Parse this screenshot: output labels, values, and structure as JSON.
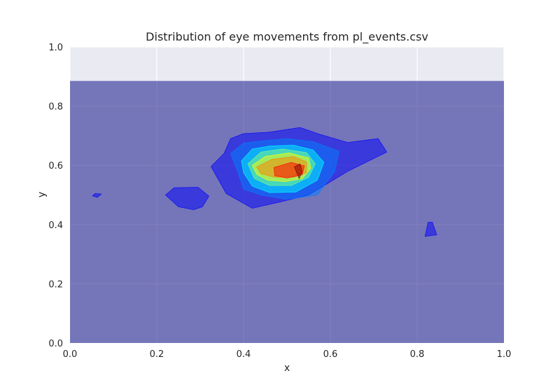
{
  "chart_data": {
    "type": "contourf",
    "title": "Distribution of eye movements from pl_events.csv",
    "xlabel": "x",
    "ylabel": "y",
    "xlim": [
      0.0,
      1.0
    ],
    "ylim": [
      0.0,
      1.0
    ],
    "xticks": [
      "0.0",
      "0.2",
      "0.4",
      "0.6",
      "0.8",
      "1.0"
    ],
    "yticks": [
      "0.0",
      "0.2",
      "0.4",
      "0.6",
      "0.8",
      "1.0"
    ],
    "grid": true,
    "background_color": "#eaeaf2",
    "colormap": "jet",
    "alpha": 0.5,
    "data_extent": {
      "x": [
        0.0,
        1.0
      ],
      "y": [
        0.0,
        0.885
      ]
    },
    "levels": [
      {
        "level": 0,
        "color": "#00007f",
        "polygons": [
          [
            [
              0.0,
              0.0
            ],
            [
              1.0,
              0.0
            ],
            [
              1.0,
              0.885
            ],
            [
              0.0,
              0.885
            ]
          ]
        ]
      },
      {
        "level": 1,
        "color": "#0000ff",
        "polygons": [
          [
            [
              0.325,
              0.596
            ],
            [
              0.355,
              0.64
            ],
            [
              0.37,
              0.69
            ],
            [
              0.4,
              0.707
            ],
            [
              0.46,
              0.712
            ],
            [
              0.53,
              0.728
            ],
            [
              0.575,
              0.705
            ],
            [
              0.64,
              0.677
            ],
            [
              0.71,
              0.69
            ],
            [
              0.73,
              0.645
            ],
            [
              0.64,
              0.58
            ],
            [
              0.55,
              0.5
            ],
            [
              0.48,
              0.475
            ],
            [
              0.42,
              0.455
            ],
            [
              0.36,
              0.505
            ]
          ],
          [
            [
              0.22,
              0.5
            ],
            [
              0.24,
              0.524
            ],
            [
              0.295,
              0.526
            ],
            [
              0.32,
              0.496
            ],
            [
              0.305,
              0.46
            ],
            [
              0.285,
              0.45
            ],
            [
              0.25,
              0.46
            ]
          ],
          [
            [
              0.052,
              0.497
            ],
            [
              0.058,
              0.505
            ],
            [
              0.072,
              0.503
            ],
            [
              0.063,
              0.492
            ]
          ],
          [
            [
              0.818,
              0.36
            ],
            [
              0.825,
              0.407
            ],
            [
              0.835,
              0.408
            ],
            [
              0.845,
              0.365
            ]
          ]
        ]
      },
      {
        "level": 2,
        "color": "#0080ff",
        "polygons": [
          [
            [
              0.37,
              0.64
            ],
            [
              0.4,
              0.675
            ],
            [
              0.44,
              0.682
            ],
            [
              0.5,
              0.69
            ],
            [
              0.56,
              0.68
            ],
            [
              0.62,
              0.647
            ],
            [
              0.61,
              0.58
            ],
            [
              0.57,
              0.5
            ],
            [
              0.5,
              0.485
            ],
            [
              0.44,
              0.5
            ],
            [
              0.4,
              0.52
            ],
            [
              0.385,
              0.585
            ]
          ]
        ]
      },
      {
        "level": 3,
        "color": "#00ffff",
        "polygons": [
          [
            [
              0.395,
              0.615
            ],
            [
              0.42,
              0.655
            ],
            [
              0.46,
              0.665
            ],
            [
              0.515,
              0.668
            ],
            [
              0.56,
              0.652
            ],
            [
              0.585,
              0.61
            ],
            [
              0.57,
              0.55
            ],
            [
              0.52,
              0.51
            ],
            [
              0.46,
              0.508
            ],
            [
              0.42,
              0.53
            ],
            [
              0.4,
              0.575
            ]
          ]
        ]
      },
      {
        "level": 4,
        "color": "#80ff80",
        "polygons": [
          [
            [
              0.41,
              0.605
            ],
            [
              0.44,
              0.645
            ],
            [
              0.49,
              0.655
            ],
            [
              0.545,
              0.643
            ],
            [
              0.565,
              0.605
            ],
            [
              0.55,
              0.56
            ],
            [
              0.51,
              0.532
            ],
            [
              0.46,
              0.532
            ],
            [
              0.425,
              0.555
            ]
          ]
        ]
      },
      {
        "level": 5,
        "color": "#ffff00",
        "polygons": [
          [
            [
              0.42,
              0.6
            ],
            [
              0.45,
              0.63
            ],
            [
              0.505,
              0.642
            ],
            [
              0.55,
              0.625
            ],
            [
              0.555,
              0.59
            ],
            [
              0.535,
              0.555
            ],
            [
              0.495,
              0.545
            ],
            [
              0.455,
              0.55
            ],
            [
              0.43,
              0.57
            ]
          ]
        ]
      },
      {
        "level": 6,
        "color": "#ff8000",
        "polygons": [
          [
            [
              0.43,
              0.595
            ],
            [
              0.465,
              0.62
            ],
            [
              0.515,
              0.63
            ],
            [
              0.545,
              0.612
            ],
            [
              0.545,
              0.575
            ],
            [
              0.515,
              0.56
            ],
            [
              0.47,
              0.56
            ],
            [
              0.44,
              0.572
            ]
          ]
        ]
      },
      {
        "level": 7,
        "color": "#ff0000",
        "polygons": [
          [
            [
              0.47,
              0.593
            ],
            [
              0.51,
              0.61
            ],
            [
              0.54,
              0.598
            ],
            [
              0.535,
              0.568
            ],
            [
              0.5,
              0.557
            ],
            [
              0.472,
              0.565
            ]
          ]
        ]
      },
      {
        "level": 8,
        "color": "#7f0000",
        "polygons": [
          [
            [
              0.517,
              0.595
            ],
            [
              0.53,
              0.605
            ],
            [
              0.535,
              0.58
            ],
            [
              0.528,
              0.555
            ]
          ]
        ]
      }
    ]
  }
}
